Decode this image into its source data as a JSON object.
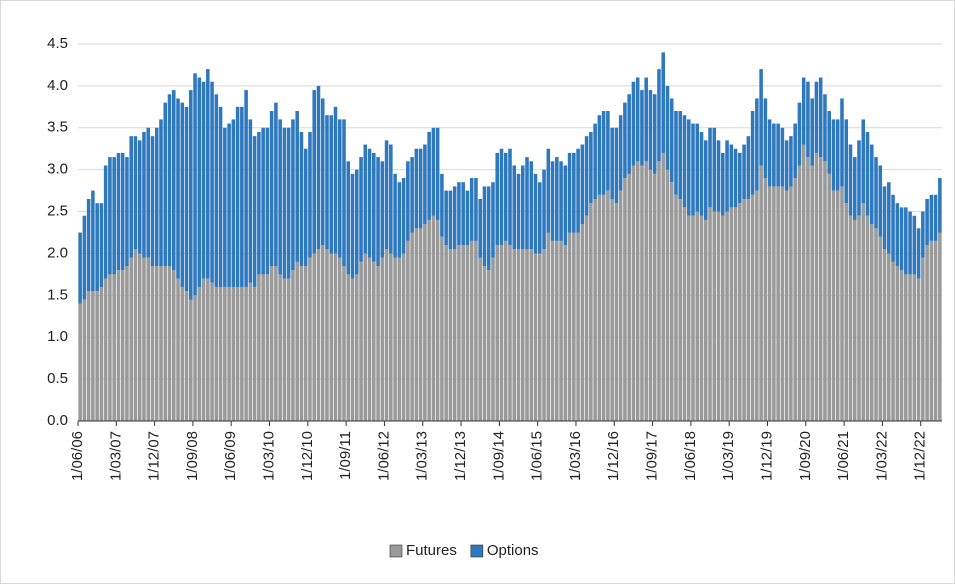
{
  "chart_data": {
    "type": "stacked_bar",
    "categories": [
      "1/06/06",
      null,
      null,
      null,
      null,
      null,
      null,
      null,
      null,
      "1/03/07",
      null,
      null,
      null,
      null,
      null,
      null,
      null,
      null,
      "1/12/07",
      null,
      null,
      null,
      null,
      null,
      null,
      null,
      null,
      "1/09/08",
      null,
      null,
      null,
      null,
      null,
      null,
      null,
      null,
      "1/06/09",
      null,
      null,
      null,
      null,
      null,
      null,
      null,
      null,
      "1/03/10",
      null,
      null,
      null,
      null,
      null,
      null,
      null,
      null,
      "1/12/10",
      null,
      null,
      null,
      null,
      null,
      null,
      null,
      null,
      "1/09/11",
      null,
      null,
      null,
      null,
      null,
      null,
      null,
      null,
      "1/06/12",
      null,
      null,
      null,
      null,
      null,
      null,
      null,
      null,
      "1/03/13",
      null,
      null,
      null,
      null,
      null,
      null,
      null,
      null,
      "1/12/13",
      null,
      null,
      null,
      null,
      null,
      null,
      null,
      null,
      "1/09/14",
      null,
      null,
      null,
      null,
      null,
      null,
      null,
      null,
      "1/06/15",
      null,
      null,
      null,
      null,
      null,
      null,
      null,
      null,
      "1/03/16",
      null,
      null,
      null,
      null,
      null,
      null,
      null,
      null,
      "1/12/16",
      null,
      null,
      null,
      null,
      null,
      null,
      null,
      null,
      "1/09/17",
      null,
      null,
      null,
      null,
      null,
      null,
      null,
      null,
      "1/06/18",
      null,
      null,
      null,
      null,
      null,
      null,
      null,
      null,
      "1/03/19",
      null,
      null,
      null,
      null,
      null,
      null,
      null,
      null,
      "1/12/19",
      null,
      null,
      null,
      null,
      null,
      null,
      null,
      null,
      "1/09/20",
      null,
      null,
      null,
      null,
      null,
      null,
      null,
      null,
      "1/06/21",
      null,
      null,
      null,
      null,
      null,
      null,
      null,
      null,
      "1/03/22",
      null,
      null,
      null,
      null,
      null,
      null,
      null,
      null,
      "1/12/22",
      null,
      null,
      null,
      null
    ],
    "series": [
      {
        "name": "Futures",
        "color": "#9a9a9a",
        "values": [
          1.4,
          1.45,
          1.55,
          1.55,
          1.55,
          1.6,
          1.7,
          1.75,
          1.75,
          1.8,
          1.8,
          1.85,
          1.95,
          2.05,
          2.0,
          1.95,
          1.95,
          1.85,
          1.85,
          1.85,
          1.85,
          1.85,
          1.8,
          1.7,
          1.6,
          1.55,
          1.45,
          1.5,
          1.6,
          1.7,
          1.7,
          1.65,
          1.6,
          1.6,
          1.6,
          1.6,
          1.6,
          1.6,
          1.6,
          1.6,
          1.65,
          1.6,
          1.75,
          1.75,
          1.75,
          1.85,
          1.85,
          1.75,
          1.7,
          1.7,
          1.8,
          1.9,
          1.85,
          1.85,
          1.95,
          2.0,
          2.05,
          2.1,
          2.05,
          2.0,
          2.0,
          1.95,
          1.85,
          1.75,
          1.7,
          1.75,
          1.9,
          2.0,
          1.95,
          1.9,
          1.85,
          1.95,
          2.05,
          2.0,
          1.95,
          1.95,
          2.0,
          2.15,
          2.25,
          2.3,
          2.3,
          2.35,
          2.4,
          2.45,
          2.4,
          2.2,
          2.1,
          2.05,
          2.05,
          2.1,
          2.1,
          2.1,
          2.15,
          2.15,
          1.95,
          1.85,
          1.8,
          1.95,
          2.1,
          2.1,
          2.15,
          2.1,
          2.05,
          2.05,
          2.05,
          2.05,
          2.05,
          2.0,
          2.0,
          2.05,
          2.25,
          2.15,
          2.15,
          2.15,
          2.1,
          2.25,
          2.25,
          2.25,
          2.35,
          2.45,
          2.6,
          2.65,
          2.7,
          2.7,
          2.75,
          2.65,
          2.6,
          2.75,
          2.9,
          2.95,
          3.05,
          3.1,
          3.05,
          3.1,
          3.0,
          2.95,
          3.1,
          3.2,
          3.0,
          2.85,
          2.7,
          2.65,
          2.55,
          2.45,
          2.45,
          2.5,
          2.45,
          2.4,
          2.55,
          2.5,
          2.5,
          2.45,
          2.5,
          2.55,
          2.55,
          2.6,
          2.65,
          2.65,
          2.7,
          2.75,
          3.05,
          2.9,
          2.8,
          2.8,
          2.8,
          2.8,
          2.75,
          2.8,
          2.9,
          3.05,
          3.3,
          3.15,
          3.05,
          3.2,
          3.15,
          3.1,
          2.95,
          2.75,
          2.75,
          2.8,
          2.6,
          2.45,
          2.4,
          2.45,
          2.6,
          2.45,
          2.35,
          2.3,
          2.2,
          2.05,
          2.0,
          1.9,
          1.85,
          1.8,
          1.75,
          1.75,
          1.75,
          1.7,
          1.95,
          2.1,
          2.15,
          2.15,
          2.25
        ]
      },
      {
        "name": "Options",
        "color": "#2e78be",
        "values": [
          0.85,
          1.0,
          1.1,
          1.2,
          1.05,
          1.0,
          1.35,
          1.4,
          1.4,
          1.4,
          1.4,
          1.3,
          1.45,
          1.35,
          1.35,
          1.5,
          1.55,
          1.55,
          1.65,
          1.75,
          1.95,
          2.05,
          2.15,
          2.15,
          2.2,
          2.2,
          2.5,
          2.65,
          2.5,
          2.35,
          2.5,
          2.4,
          2.3,
          2.15,
          1.9,
          1.95,
          2.0,
          2.15,
          2.15,
          2.35,
          1.95,
          1.8,
          1.7,
          1.75,
          1.75,
          1.85,
          1.95,
          1.85,
          1.8,
          1.8,
          1.8,
          1.8,
          1.6,
          1.4,
          1.5,
          1.95,
          1.95,
          1.75,
          1.6,
          1.65,
          1.75,
          1.65,
          1.75,
          1.35,
          1.25,
          1.25,
          1.25,
          1.3,
          1.3,
          1.3,
          1.3,
          1.15,
          1.3,
          1.3,
          1.0,
          0.9,
          0.9,
          0.95,
          0.9,
          0.95,
          0.95,
          0.95,
          1.05,
          1.05,
          1.1,
          0.75,
          0.65,
          0.7,
          0.75,
          0.75,
          0.75,
          0.65,
          0.75,
          0.75,
          0.7,
          0.95,
          1.0,
          0.9,
          1.1,
          1.15,
          1.05,
          1.15,
          1.0,
          0.9,
          1.0,
          1.1,
          1.05,
          0.95,
          0.85,
          0.95,
          1.0,
          0.95,
          1.0,
          0.95,
          0.95,
          0.95,
          0.95,
          1.0,
          0.95,
          0.95,
          0.85,
          0.9,
          0.95,
          1.0,
          0.95,
          0.85,
          0.9,
          0.9,
          0.9,
          0.95,
          1.0,
          1.0,
          0.9,
          1.0,
          0.95,
          0.95,
          1.1,
          1.2,
          1.0,
          1.0,
          1.0,
          1.05,
          1.1,
          1.15,
          1.1,
          1.05,
          1.0,
          0.95,
          0.95,
          1.0,
          0.85,
          0.75,
          0.85,
          0.75,
          0.7,
          0.6,
          0.65,
          0.75,
          1.0,
          1.1,
          1.15,
          0.95,
          0.8,
          0.75,
          0.75,
          0.7,
          0.6,
          0.6,
          0.65,
          0.75,
          0.8,
          0.9,
          0.8,
          0.85,
          0.95,
          0.8,
          0.75,
          0.85,
          0.85,
          1.05,
          1.0,
          0.85,
          0.75,
          0.9,
          1.0,
          1.0,
          0.95,
          0.85,
          0.85,
          0.75,
          0.85,
          0.8,
          0.75,
          0.75,
          0.8,
          0.75,
          0.7,
          0.6,
          0.55,
          0.55,
          0.55,
          0.55,
          0.65
        ]
      }
    ],
    "ylim": [
      0,
      4.5
    ],
    "yticks": [
      {
        "value": 0,
        "label": "0.0"
      },
      0.5,
      {
        "value": 1,
        "label": "1.0"
      },
      1.5,
      {
        "value": 2,
        "label": "2.0"
      },
      2.5,
      {
        "value": 3,
        "label": "3.0"
      },
      3.5,
      {
        "value": 4,
        "label": "4.0"
      },
      4.5
    ],
    "grid": true,
    "legend": "bottom"
  }
}
